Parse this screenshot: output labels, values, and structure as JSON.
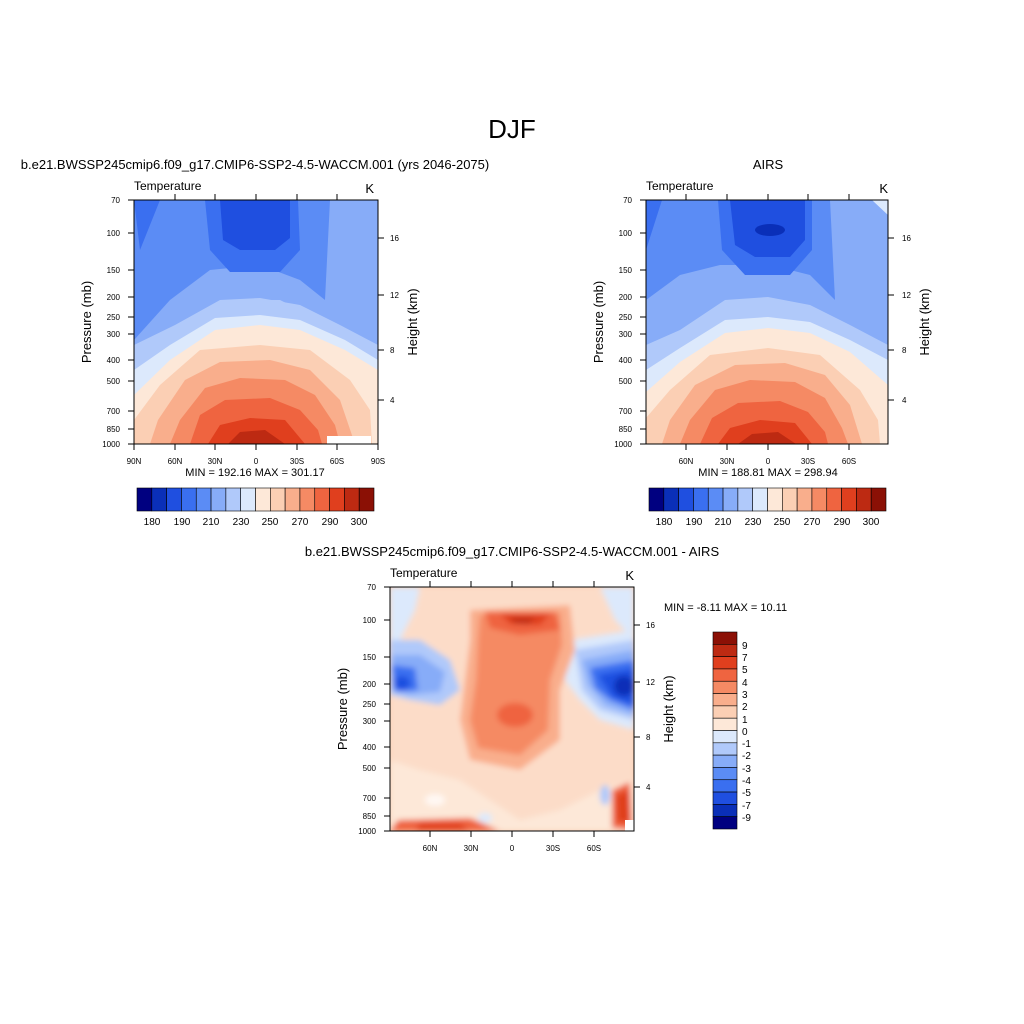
{
  "page_title": "DJF",
  "colors": {
    "model_obs": [
      "#000080",
      "#0a2fb8",
      "#1f4fe0",
      "#3a6ff0",
      "#5b8cf5",
      "#87acf8",
      "#b0c9fa",
      "#dce9fc",
      "#fde8d8",
      "#fbcfb4",
      "#f9ae8c",
      "#f58a64",
      "#ef6440",
      "#e03f1e",
      "#bd2a12",
      "#8b1005"
    ],
    "diff": [
      "#000080",
      "#0a2fb8",
      "#1f4fe0",
      "#3a6ff0",
      "#5b8cf5",
      "#87acf8",
      "#b0c9fa",
      "#dce9fc",
      "#fde8d8",
      "#fbcfb4",
      "#f9ae8c",
      "#f58a64",
      "#ef6440",
      "#e03f1e",
      "#bd2a12",
      "#8b1005"
    ]
  },
  "chart_data": [
    {
      "type": "heatmap",
      "title": "b.e21.BWSSP245cmip6.f09_g17.CMIP6-SSP2-4.5-WACCM.001 (yrs 2046-2075)",
      "left_label": "Temperature",
      "right_label": "K",
      "ylabel": "Pressure (mb)",
      "ylabel_right": "Height (km)",
      "x_ticks": [
        "90N",
        "60N",
        "30N",
        "0",
        "30S",
        "60S",
        "90S"
      ],
      "y_ticks": [
        "70",
        "100",
        "150",
        "200",
        "250",
        "300",
        "400",
        "500",
        "700",
        "850",
        "1000"
      ],
      "height_ticks": [
        "16",
        "12",
        "8",
        "4"
      ],
      "stats": "MIN = 192.16  MAX = 301.17",
      "colorbar_labels": [
        "180",
        "190",
        "210",
        "230",
        "250",
        "270",
        "290",
        "300"
      ],
      "ylim": [
        1000,
        70
      ],
      "xlim": [
        "90N",
        "90S"
      ]
    },
    {
      "type": "heatmap",
      "title": "AIRS",
      "left_label": "Temperature",
      "right_label": "K",
      "ylabel": "Pressure (mb)",
      "ylabel_right": "Height (km)",
      "x_ticks": [
        "60N",
        "30N",
        "0",
        "30S",
        "60S"
      ],
      "y_ticks": [
        "70",
        "100",
        "150",
        "200",
        "250",
        "300",
        "400",
        "500",
        "700",
        "850",
        "1000"
      ],
      "height_ticks": [
        "16",
        "12",
        "8",
        "4"
      ],
      "stats": "MIN = 188.81  MAX = 298.94",
      "colorbar_labels": [
        "180",
        "190",
        "210",
        "230",
        "250",
        "270",
        "290",
        "300"
      ],
      "ylim": [
        1000,
        70
      ]
    },
    {
      "type": "heatmap",
      "title": "b.e21.BWSSP245cmip6.f09_g17.CMIP6-SSP2-4.5-WACCM.001 - AIRS",
      "left_label": "Temperature",
      "right_label": "K",
      "ylabel": "Pressure (mb)",
      "ylabel_right": "Height (km)",
      "x_ticks": [
        "60N",
        "30N",
        "0",
        "30S",
        "60S"
      ],
      "y_ticks": [
        "70",
        "100",
        "150",
        "200",
        "250",
        "300",
        "400",
        "500",
        "700",
        "850",
        "1000"
      ],
      "height_ticks": [
        "16",
        "12",
        "8",
        "4"
      ],
      "stats": "MIN =  -8.11  MAX =  10.11",
      "colorbar_labels": [
        "9",
        "7",
        "5",
        "4",
        "3",
        "2",
        "1",
        "0",
        "-1",
        "-2",
        "-3",
        "-4",
        "-5",
        "-7",
        "-9"
      ],
      "ylim": [
        1000,
        70
      ]
    }
  ]
}
